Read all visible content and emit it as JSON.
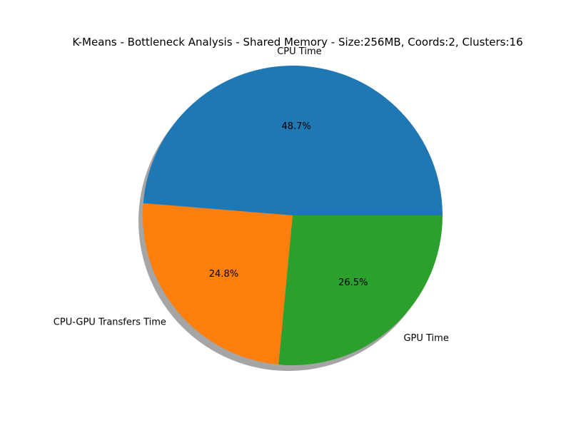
{
  "chart_data": {
    "type": "pie",
    "title": "K-Means - Bottleneck Analysis - Shared Memory - Size:256MB, Coords:2, Clusters:16",
    "slices": [
      {
        "label": "CPU Time",
        "percent_label": "48.7%",
        "value": 48.7,
        "color": "#1f77b4"
      },
      {
        "label": "CPU-GPU Transfers Time",
        "percent_label": "24.8%",
        "value": 24.8,
        "color": "#ff7f0e"
      },
      {
        "label": "GPU Time",
        "percent_label": "26.5%",
        "value": 26.5,
        "color": "#2ca02c"
      }
    ],
    "shadow": true,
    "start_angle_deg": 0,
    "direction": "counterclockwise"
  }
}
